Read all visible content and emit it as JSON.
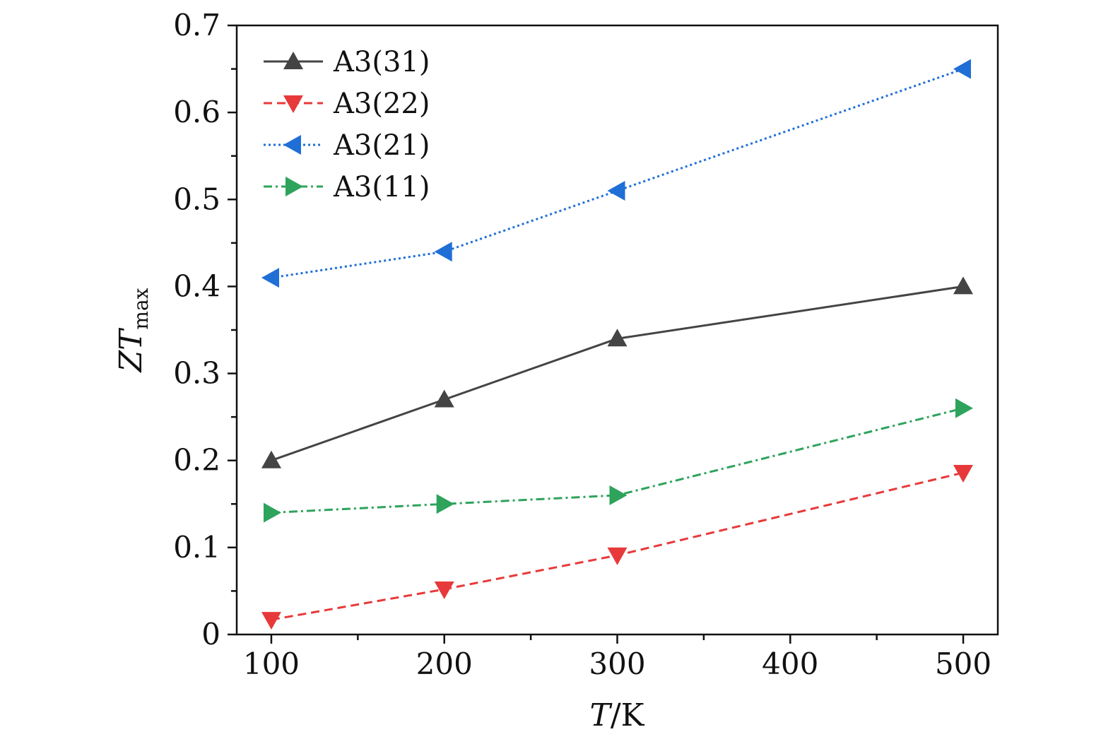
{
  "chart_data": {
    "type": "line",
    "xlabel": {
      "var": "T",
      "unit": "/K"
    },
    "ylabel": {
      "var": "ZT",
      "sub": "max"
    },
    "xlim": [
      80,
      520
    ],
    "ylim": [
      0,
      0.7
    ],
    "xticks": [
      100,
      200,
      300,
      400,
      500
    ],
    "xtick_labels": [
      "100",
      "200",
      "300",
      "400",
      "500"
    ],
    "xminor": [
      150,
      250,
      350,
      450
    ],
    "yticks": [
      0,
      0.1,
      0.2,
      0.3,
      0.4,
      0.5,
      0.6,
      0.7
    ],
    "ytick_labels": [
      "0",
      "0.1",
      "0.2",
      "0.3",
      "0.4",
      "0.5",
      "0.6",
      "0.7"
    ],
    "yminor": [
      0.05,
      0.15,
      0.25,
      0.35,
      0.45,
      0.55,
      0.65
    ],
    "legend_position": "top-left",
    "grid": false,
    "series": [
      {
        "name": "A3(31)",
        "color": "#444444",
        "marker": "triangle-up",
        "dash": "solid",
        "x": [
          100,
          200,
          300,
          500
        ],
        "y": [
          0.2,
          0.27,
          0.34,
          0.4
        ]
      },
      {
        "name": "A3(22)",
        "color": "#e8393a",
        "marker": "triangle-down",
        "dash": "dash",
        "x": [
          100,
          200,
          300,
          500
        ],
        "y": [
          0.017,
          0.052,
          0.091,
          0.186
        ]
      },
      {
        "name": "A3(21)",
        "color": "#1f6fd6",
        "marker": "triangle-left",
        "dash": "dot",
        "x": [
          100,
          200,
          300,
          500
        ],
        "y": [
          0.41,
          0.44,
          0.51,
          0.65
        ]
      },
      {
        "name": "A3(11)",
        "color": "#2ea35c",
        "marker": "triangle-right",
        "dash": "dashdot",
        "x": [
          100,
          200,
          300,
          500
        ],
        "y": [
          0.14,
          0.15,
          0.16,
          0.26
        ]
      }
    ]
  }
}
